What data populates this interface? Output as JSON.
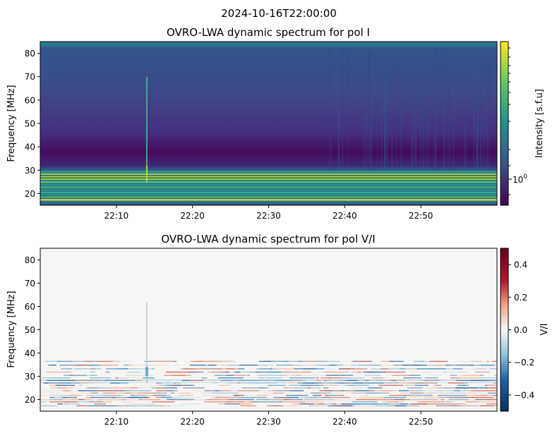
{
  "figure": {
    "suptitle": "2024-10-16T22:00:00"
  },
  "chart_data": [
    {
      "type": "heatmap",
      "title": "OVRO-LWA dynamic spectrum for pol I",
      "xlabel": "",
      "ylabel": "Frequency [MHz]",
      "x_range": [
        "22:00",
        "23:00"
      ],
      "x_ticks": [
        "22:10",
        "22:20",
        "22:30",
        "22:40",
        "22:50"
      ],
      "y_range": [
        15,
        85
      ],
      "y_ticks": [
        20,
        30,
        40,
        50,
        60,
        70,
        80
      ],
      "colormap": "viridis",
      "colorbar": {
        "label": "Intensity [s.f.u]",
        "scale": "log",
        "tick_labels": [
          "10^0"
        ]
      },
      "features": [
        {
          "name": "RFI bands",
          "freq_MHz": [
            17,
            29
          ],
          "level": "high"
        },
        {
          "name": "low band",
          "freq_MHz": [
            31,
            42
          ],
          "level": "low"
        },
        {
          "name": "burst",
          "time": "22:14",
          "freq_MHz": [
            25,
            70
          ]
        }
      ]
    },
    {
      "type": "heatmap",
      "title": "OVRO-LWA dynamic spectrum for pol V/I",
      "xlabel": "",
      "ylabel": "Frequency [MHz]",
      "x_range": [
        "22:00",
        "23:00"
      ],
      "x_ticks": [
        "22:10",
        "22:20",
        "22:30",
        "22:40",
        "22:50"
      ],
      "y_range": [
        15,
        85
      ],
      "y_ticks": [
        20,
        30,
        40,
        50,
        60,
        70,
        80
      ],
      "colormap": "RdBu_r",
      "colorbar": {
        "label": "V/I",
        "scale": "linear",
        "range": [
          -0.5,
          0.5
        ],
        "tick_labels": [
          "0.4",
          "0.2",
          "0.0",
          "−0.2",
          "−0.4"
        ],
        "tick_values": [
          0.4,
          0.2,
          0.0,
          -0.2,
          -0.4
        ]
      }
    }
  ]
}
